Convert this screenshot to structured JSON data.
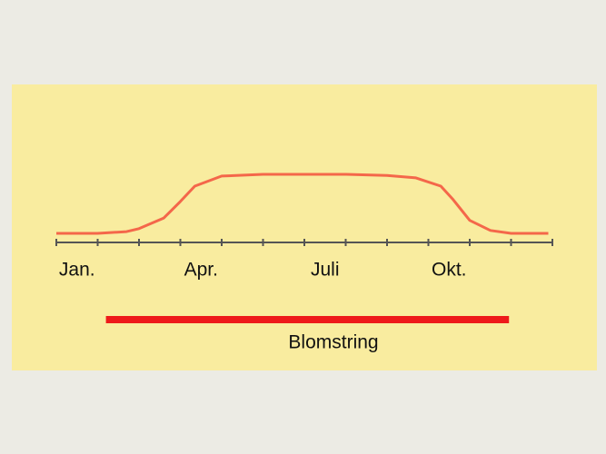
{
  "chart_data": {
    "type": "line",
    "x": [
      0,
      1,
      1.7,
      2,
      2.6,
      3,
      3.35,
      4,
      5,
      7,
      8,
      8.7,
      9.3,
      9.6,
      10,
      10.5,
      11,
      11.9
    ],
    "values": [
      0,
      0,
      3,
      8,
      26,
      54,
      80,
      97,
      100,
      100,
      98,
      94,
      80,
      57,
      22,
      5,
      0,
      0
    ],
    "color": "#f4674a",
    "xlim": [
      0,
      12
    ],
    "ylim": [
      0,
      100
    ],
    "xticks": [
      {
        "value": 0.5,
        "label": "Jan."
      },
      {
        "value": 3.5,
        "label": "Apr."
      },
      {
        "value": 6.5,
        "label": "Juli"
      },
      {
        "value": 9.5,
        "label": "Okt."
      }
    ],
    "annotation": {
      "label": "Blomstring",
      "start": 1.2,
      "end": 10.95,
      "color": "#ee1a1a"
    }
  }
}
